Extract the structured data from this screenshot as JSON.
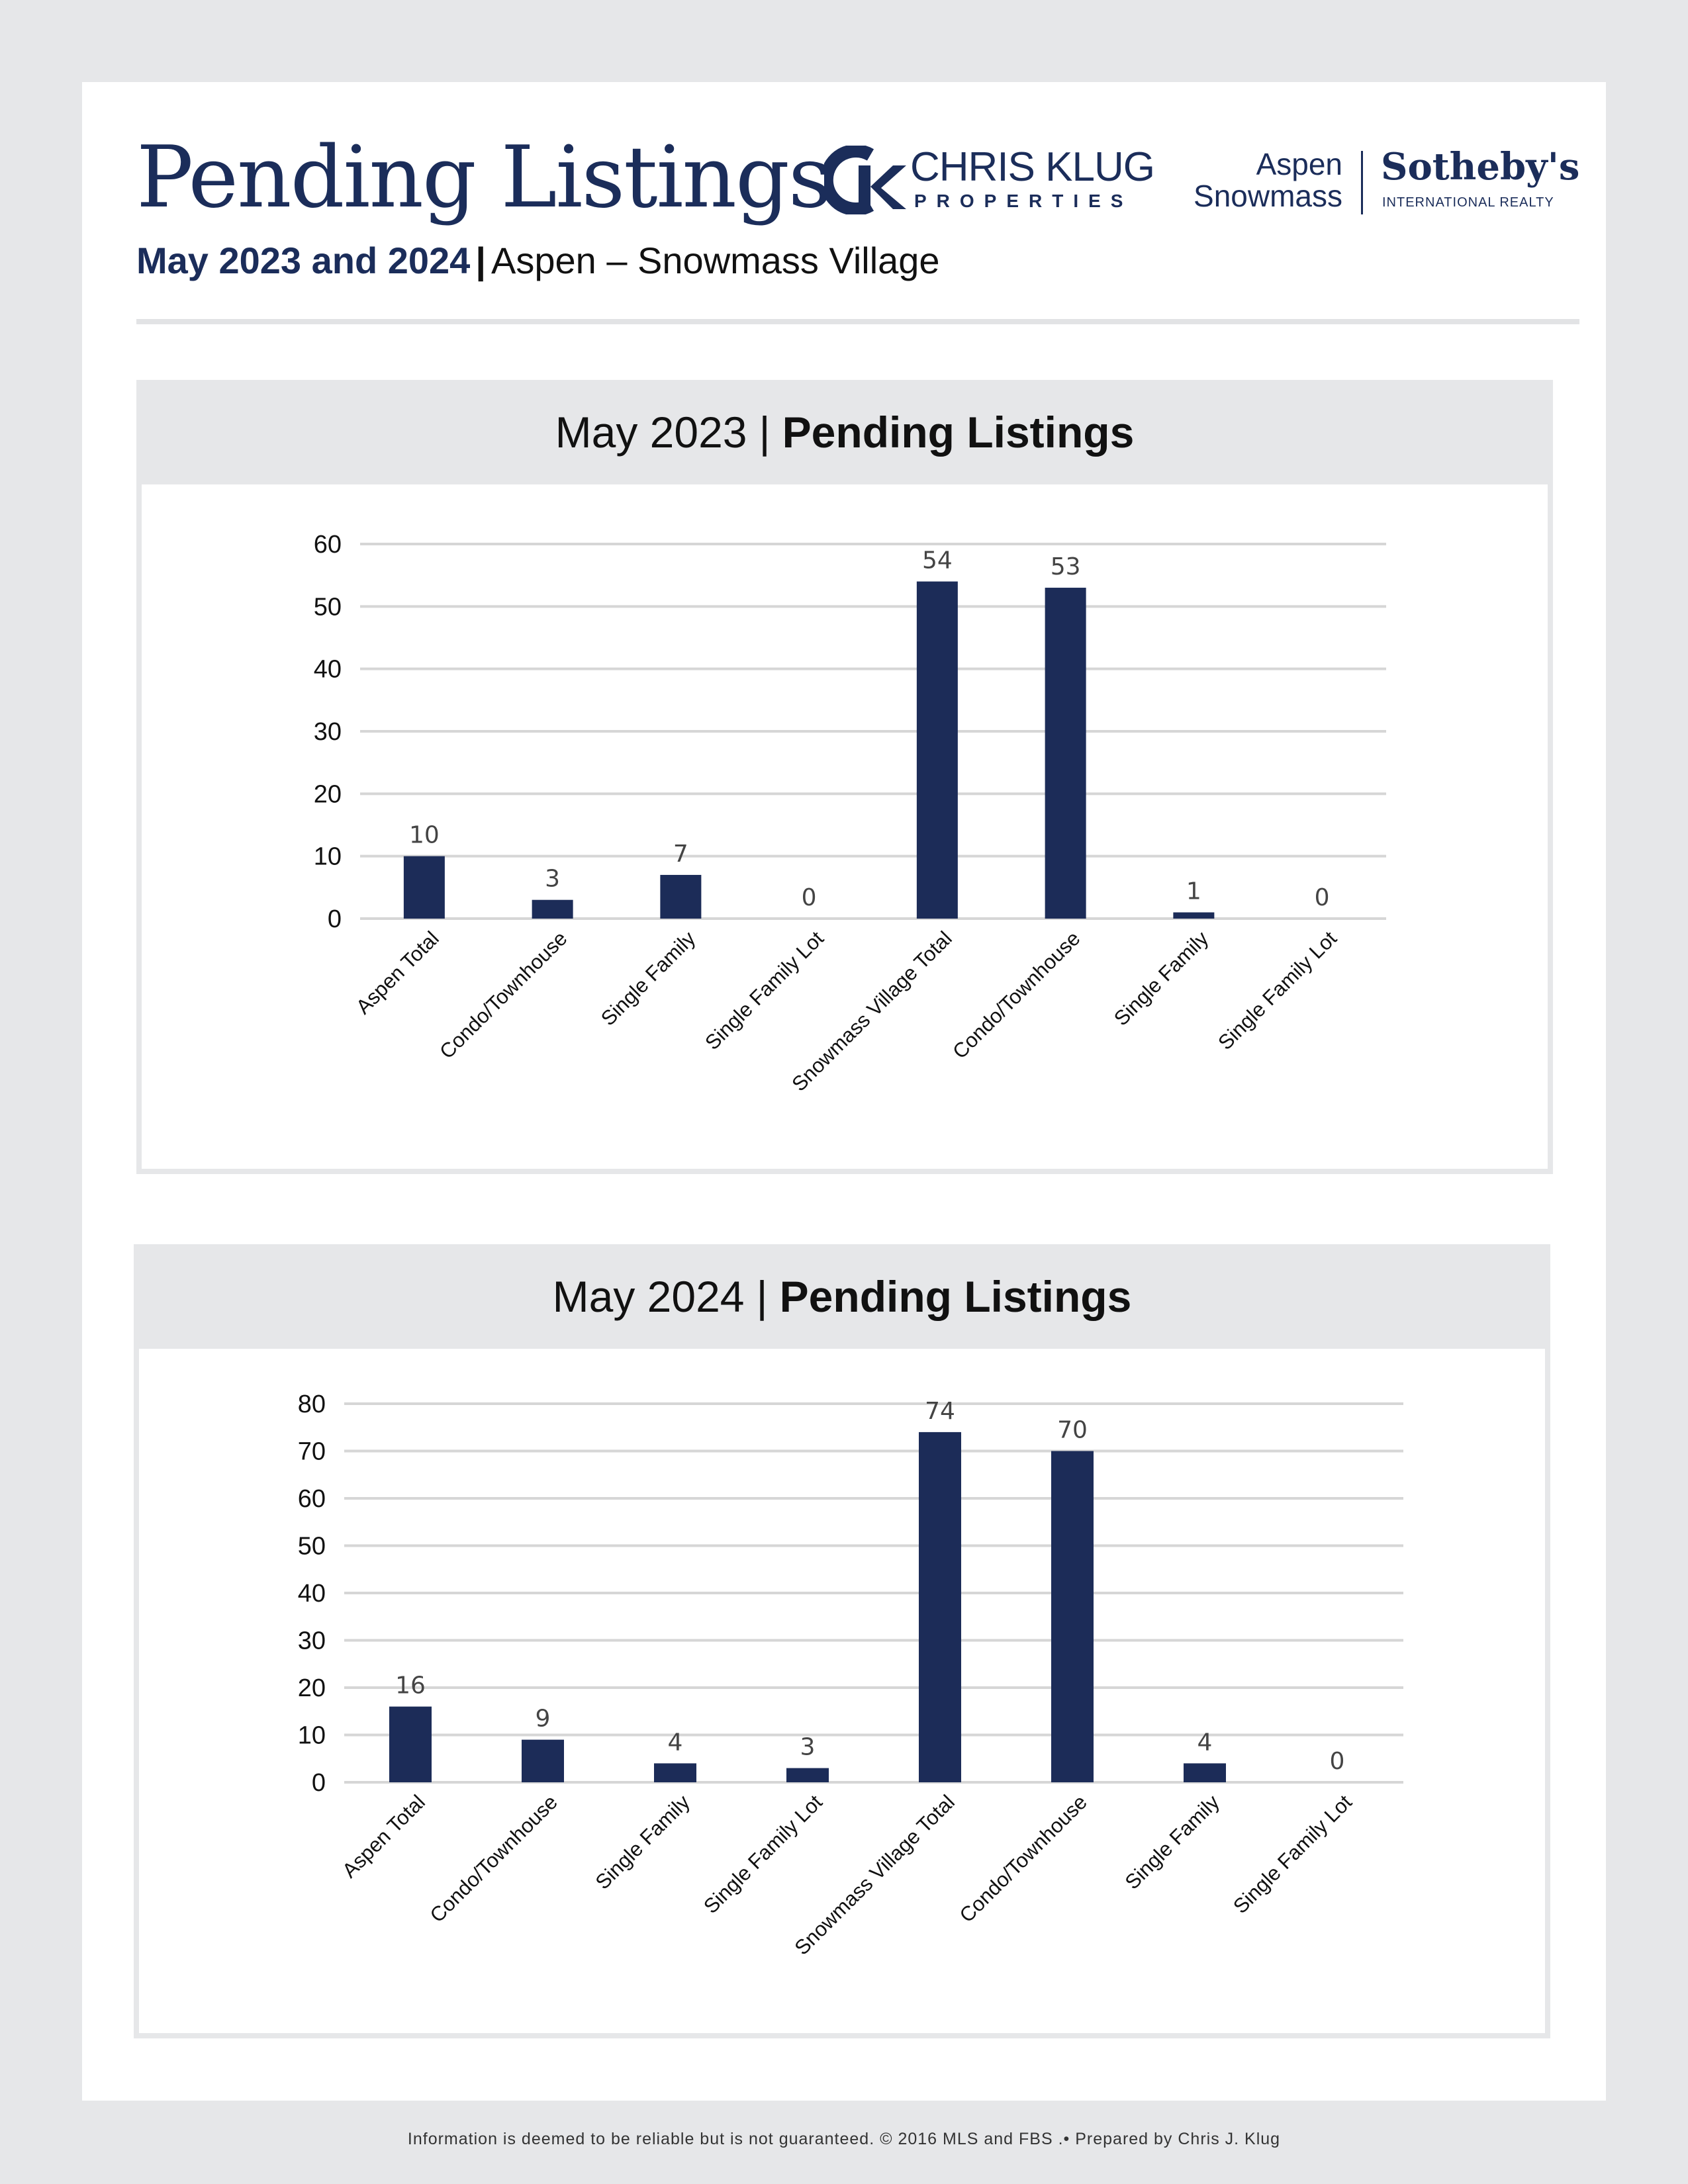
{
  "header": {
    "title": "Pending Listings",
    "subtitle_bold": "May 2023 and 2024",
    "subtitle_sep": "|",
    "subtitle_rest": "Aspen – Snowmass Village"
  },
  "logos": {
    "chris_klug": {
      "name": "CHRIS KLUG",
      "sub": "PROPERTIES",
      "mark": "ck-monogram-icon"
    },
    "sothebys": {
      "line1": "Aspen",
      "line2": "Snowmass",
      "name": "Sotheby's",
      "sub": "INTERNATIONAL REALTY"
    }
  },
  "panels": [
    {
      "head_prefix": "May 2023",
      "head_sep": "|",
      "head_bold": "Pending Listings"
    },
    {
      "head_prefix": "May 2024",
      "head_sep": "|",
      "head_bold": "Pending Listings"
    }
  ],
  "chart_data": [
    {
      "type": "bar",
      "title": "May 2023 | Pending Listings",
      "categories": [
        "Aspen Total",
        "Condo/Townhouse",
        "Single Family",
        "Single Family Lot",
        "Snowmass Village Total",
        "Condo/Townhouse",
        "Single Family",
        "Single Family Lot"
      ],
      "values": [
        10,
        3,
        7,
        0,
        54,
        53,
        1,
        0
      ],
      "ylim": [
        0,
        60
      ],
      "yticks": [
        0,
        10,
        20,
        30,
        40,
        50,
        60
      ],
      "grid": true,
      "bar_color": "#1c2c58"
    },
    {
      "type": "bar",
      "title": "May 2024 | Pending Listings",
      "categories": [
        "Aspen Total",
        "Condo/Townhouse",
        "Single Family",
        "Single Family Lot",
        "Snowmass Village Total",
        "Condo/Townhouse",
        "Single Family",
        "Single Family Lot"
      ],
      "values": [
        16,
        9,
        4,
        3,
        74,
        70,
        4,
        0
      ],
      "ylim": [
        0,
        80
      ],
      "yticks": [
        0,
        10,
        20,
        30,
        40,
        50,
        60,
        70,
        80
      ],
      "grid": true,
      "bar_color": "#1c2c58"
    }
  ],
  "footer": {
    "text": "Information is deemed to be reliable but is not guaranteed. © 2016 MLS and FBS .• Prepared by Chris J. Klug"
  }
}
